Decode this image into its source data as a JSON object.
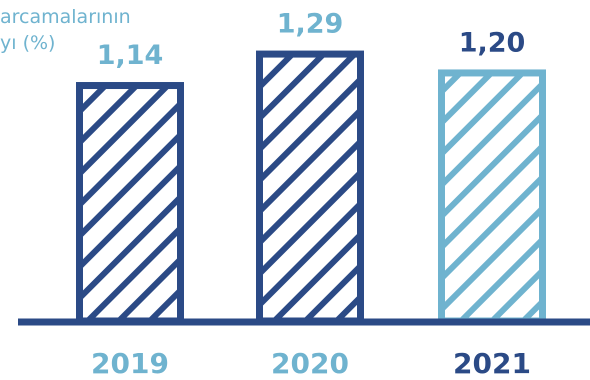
{
  "chart_data": {
    "type": "bar",
    "title_fragment_lines": [
      "arcamalarının",
      "yı (%)"
    ],
    "categories": [
      "2019",
      "2020",
      "2021"
    ],
    "values": [
      1.14,
      1.29,
      1.2
    ],
    "value_labels": [
      "1,14",
      "1,29",
      "1,20"
    ],
    "ylim": [
      0,
      1.35
    ],
    "grid": false,
    "legend": "none",
    "colors": {
      "dark_blue": "#2b4a86",
      "light_blue": "#6fb3cf",
      "axis": "#2b4a86",
      "year_2021_label": "#2b4a86"
    },
    "bar_colors": [
      "#2b4a86",
      "#2b4a86",
      "#6fb3cf"
    ],
    "category_label_colors": [
      "#6fb3cf",
      "#6fb3cf",
      "#2b4a86"
    ],
    "value_label_colors": [
      "#6fb3cf",
      "#6fb3cf",
      "#2b4a86"
    ],
    "fill_pattern": "diagonal-hatch"
  }
}
